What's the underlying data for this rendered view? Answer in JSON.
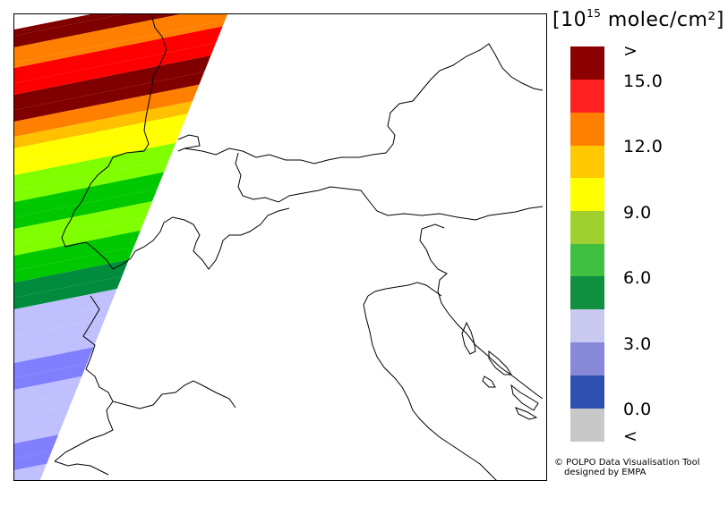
{
  "legend": {
    "unit_prefix": "[10",
    "unit_exponent": "15",
    "unit_suffix": " molec/cm²]",
    "labels": [
      ">",
      "15.0",
      "12.0",
      "9.0",
      "6.0",
      "3.0",
      "0.0",
      "<"
    ],
    "swatches": [
      "#8b0000",
      "#ff2020",
      "#ff8000",
      "#ffc800",
      "#ffff00",
      "#a0d030",
      "#40c040",
      "#109040",
      "#c8c8f0",
      "#8888d8",
      "#3050b0",
      "#c8c8c8"
    ]
  },
  "credits": {
    "line1": "© POLPO Data Visualisation Tool",
    "line2": "designed by EMPA"
  },
  "swath_colors": {
    "darkred": "#800000",
    "orange": "#ff8000",
    "red": "#ff0000",
    "yelloworange": "#ffc000",
    "yellow": "#ffff00",
    "lightgreen": "#80ff00",
    "green": "#00c800",
    "darkgreen": "#008c3c",
    "lavender": "#c0c0ff",
    "blue": "#8080ff"
  }
}
